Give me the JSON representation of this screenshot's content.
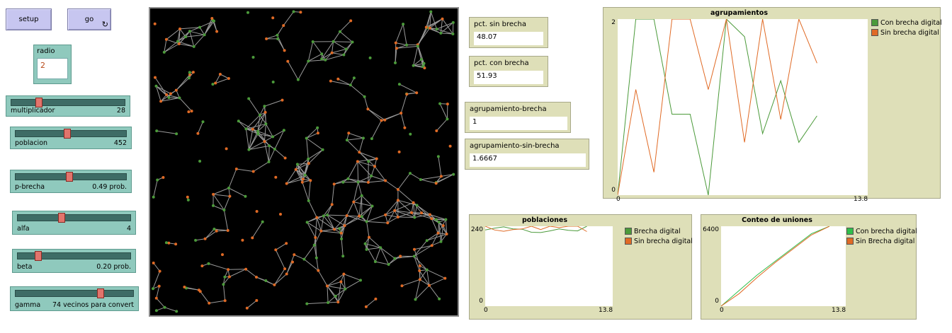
{
  "buttons": {
    "setup": "setup",
    "go": "go",
    "go_forever_icon": "↻"
  },
  "radio": {
    "label": "radio",
    "value": "2"
  },
  "sliders": [
    {
      "name": "multiplicador",
      "display": "28",
      "position": 0.22
    },
    {
      "name": "poblacion",
      "display": "452",
      "position": 0.45
    },
    {
      "name": "p-brecha",
      "display": "0.49 prob.",
      "position": 0.47
    },
    {
      "name": "alfa",
      "display": "4",
      "position": 0.37
    },
    {
      "name": "beta",
      "display": "0.20 prob.",
      "position": 0.16
    },
    {
      "name": "gamma",
      "display": "74 vecinos para convert",
      "position": 0.72
    }
  ],
  "monitors": [
    {
      "label": "pct. sin brecha",
      "value": "48.07"
    },
    {
      "label": "pct. con brecha",
      "value": "51.93"
    },
    {
      "label": "agrupamiento-brecha",
      "value": "1"
    },
    {
      "label": "agrupamiento-sin-brecha",
      "value": "1.6667"
    }
  ],
  "colors": {
    "green": "#4b9a3a",
    "orange": "#e06a25",
    "link": "#9a9a9a"
  },
  "chart_data": [
    {
      "type": "line",
      "title": "agrupamientos",
      "xlim": [
        0,
        13.8
      ],
      "ylim": [
        0,
        2
      ],
      "x_tick_labels": [
        "0",
        "13.8"
      ],
      "y_tick_labels": [
        "0",
        "2"
      ],
      "series": [
        {
          "name": "Con brecha digital",
          "color": "#4b9a3a",
          "x": [
            0,
            1,
            2,
            3,
            4,
            5,
            6,
            7,
            8,
            9,
            10,
            11,
            12
          ],
          "y": [
            0,
            2,
            2,
            0.92,
            0.92,
            0,
            2,
            1.8,
            0.7,
            1.3,
            0.6,
            0.9,
            null
          ]
        },
        {
          "name": "Sin brecha digital",
          "color": "#e06a25",
          "x": [
            0,
            1,
            2,
            3,
            4,
            5,
            6,
            7,
            8,
            9,
            10,
            11,
            12
          ],
          "y": [
            0,
            1.2,
            0.26,
            2,
            2,
            1.2,
            2,
            0.6,
            2,
            0.86,
            2,
            1.5,
            null
          ]
        }
      ]
    },
    {
      "type": "line",
      "title": "poblaciones",
      "xlim": [
        0,
        13.8
      ],
      "ylim": [
        0,
        240
      ],
      "x_tick_labels": [
        "0",
        "13.8"
      ],
      "y_tick_labels": [
        "0",
        "240"
      ],
      "series": [
        {
          "name": "Brecha digital",
          "color": "#4b9a3a",
          "x": [
            0,
            1,
            2,
            3,
            4,
            5,
            6,
            7,
            8,
            9,
            10,
            11
          ],
          "y": [
            229,
            234,
            238,
            232,
            231,
            222,
            221,
            226,
            232,
            228,
            226,
            240
          ]
        },
        {
          "name": "Sin brecha digital",
          "color": "#e06a25",
          "x": [
            0,
            1,
            2,
            3,
            4,
            5,
            6,
            7,
            8,
            9,
            10,
            11
          ],
          "y": [
            240,
            229,
            225,
            230,
            232,
            240,
            230,
            240,
            236,
            240,
            240,
            224
          ]
        }
      ]
    },
    {
      "type": "line",
      "title": "Conteo de uniones",
      "xlim": [
        0,
        13.8
      ],
      "ylim": [
        0,
        6400
      ],
      "x_tick_labels": [
        "0",
        "13.8"
      ],
      "y_tick_labels": [
        "0",
        "6400"
      ],
      "series": [
        {
          "name": "Con brecha digital",
          "color": "#2fbf4a",
          "x": [
            0,
            2,
            4,
            6,
            8,
            10,
            12
          ],
          "y": [
            0,
            1250,
            2500,
            3600,
            4700,
            5800,
            6900
          ]
        },
        {
          "name": "Sin Brecha digital",
          "color": "#e06a25",
          "x": [
            0,
            2,
            4,
            6,
            8,
            10,
            12
          ],
          "y": [
            0,
            1000,
            2300,
            3500,
            4600,
            5700,
            6900
          ]
        }
      ]
    }
  ]
}
